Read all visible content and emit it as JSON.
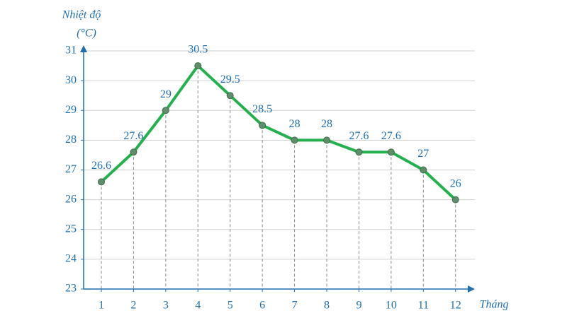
{
  "chart_data": {
    "type": "line",
    "y_label": "Nhiệt độ",
    "y_unit": "(°C)",
    "x_label": "Tháng",
    "x": [
      1,
      2,
      3,
      4,
      5,
      6,
      7,
      8,
      9,
      10,
      11,
      12
    ],
    "series": [
      {
        "color": "#22b14c",
        "values": [
          26.6,
          27.6,
          29,
          30.5,
          29.5,
          28.5,
          28,
          28,
          27.6,
          27.6,
          27,
          26
        ]
      }
    ],
    "xlim": [
      0.45,
      12.6
    ],
    "xticks": [
      1,
      2,
      3,
      4,
      5,
      6,
      7,
      8,
      9,
      10,
      11,
      12
    ],
    "ylim": [
      23,
      31
    ],
    "yticks": [
      23,
      24,
      25,
      26,
      27,
      28,
      29,
      30,
      31
    ],
    "grid": true
  }
}
